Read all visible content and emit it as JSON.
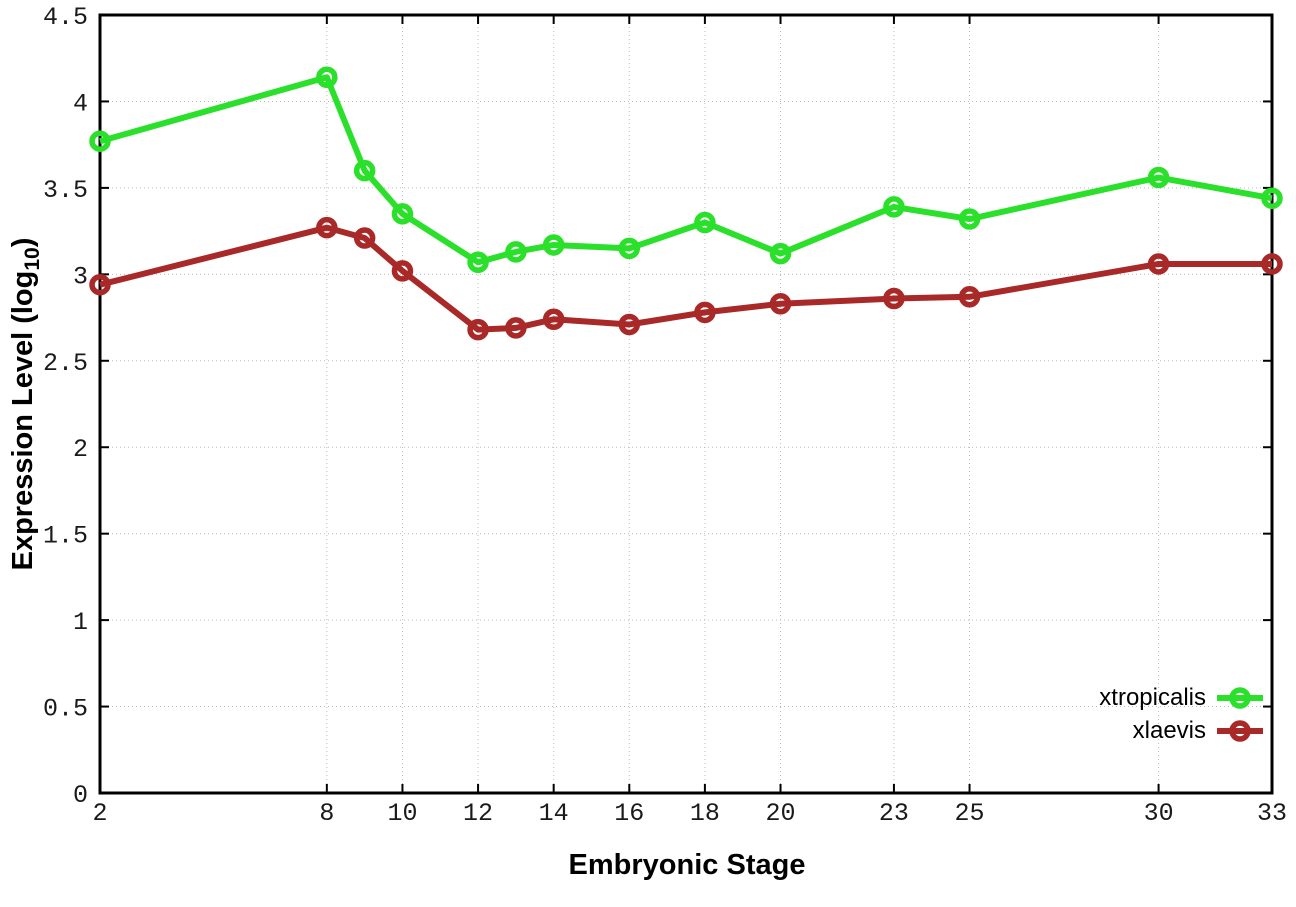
{
  "figure": {
    "background": "#ffffff",
    "xlabel": "Embryonic Stage",
    "ylabel_prefix": "Expression Level (log",
    "ylabel_subscript": "10",
    "ylabel_suffix": ")"
  },
  "chart_data": {
    "type": "line",
    "title": "",
    "xlabel": "Embryonic Stage",
    "ylabel": "Expression Level (log10)",
    "xlim": [
      2,
      33
    ],
    "ylim": [
      0,
      4.5
    ],
    "grid": true,
    "grid_style": "dotted",
    "legend_position": "bottom-right",
    "xticks": [
      2,
      8,
      10,
      12,
      14,
      16,
      18,
      20,
      23,
      25,
      30,
      33
    ],
    "yticks": [
      0,
      0.5,
      1,
      1.5,
      2,
      2.5,
      3,
      3.5,
      4,
      4.5
    ],
    "ytick_labels": [
      "0",
      "0.5",
      "1",
      "1.5",
      "2",
      "2.5",
      "3",
      "3.5",
      "4",
      "4.5"
    ],
    "x": [
      2,
      8,
      9,
      10,
      12,
      13,
      14,
      16,
      18,
      20,
      23,
      25,
      30,
      33
    ],
    "series": [
      {
        "name": "xtropicalis",
        "color": "#2ae02a",
        "values": [
          3.77,
          4.14,
          3.6,
          3.35,
          3.07,
          3.13,
          3.17,
          3.15,
          3.3,
          3.12,
          3.39,
          3.32,
          3.56,
          3.44
        ]
      },
      {
        "name": "xlaevis",
        "color": "#a92928",
        "values": [
          2.94,
          3.27,
          3.21,
          3.02,
          2.68,
          2.69,
          2.74,
          2.71,
          2.78,
          2.83,
          2.86,
          2.87,
          3.06,
          3.06
        ]
      }
    ],
    "colors": {
      "axis": "#000000",
      "grid": "#bcbcbc",
      "tick_label": "#1a1a1a"
    }
  }
}
